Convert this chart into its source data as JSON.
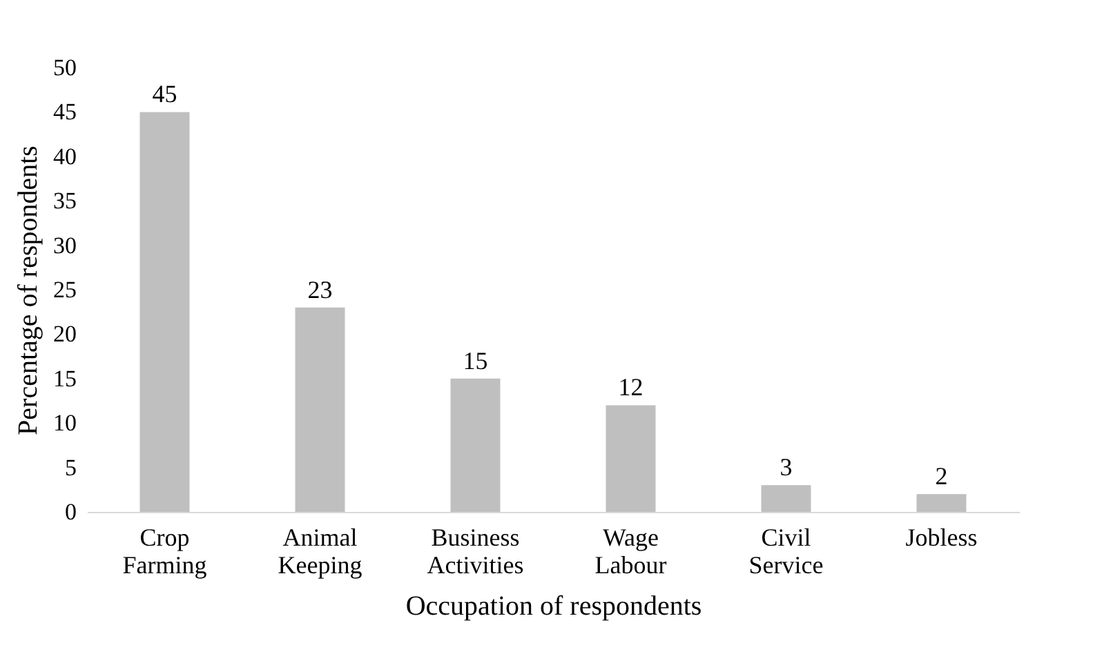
{
  "chart_data": {
    "type": "bar",
    "xlabel": "Occupation of respondents",
    "ylabel": "Percentage of respondents",
    "categories": [
      "Crop Farming",
      "Animal Keeping",
      "Business Activities",
      "Wage Labour",
      "Civil Service",
      "Jobless"
    ],
    "values": [
      45,
      23,
      15,
      12,
      3,
      2
    ],
    "color": "#bfbfbf",
    "ylim": [
      0,
      50
    ],
    "yticks": [
      0,
      5,
      10,
      15,
      20,
      25,
      30,
      35,
      40,
      45,
      50
    ],
    "grid": false,
    "data_labels": true
  }
}
